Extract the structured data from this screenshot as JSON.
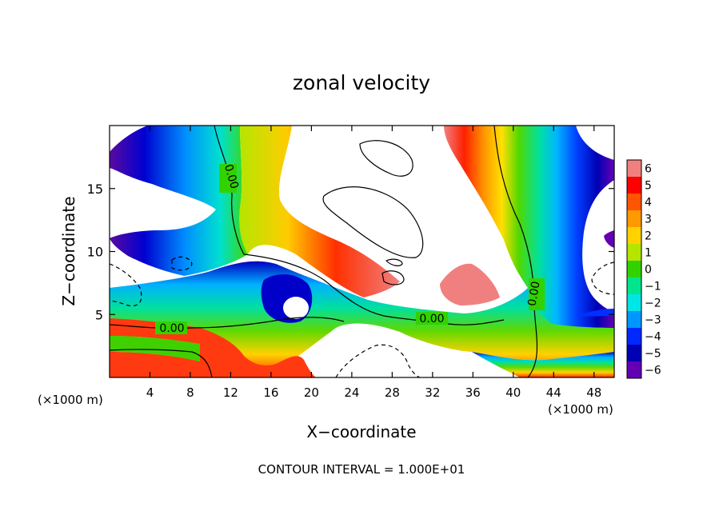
{
  "chart_data": {
    "type": "heatmap",
    "title": "zonal velocity",
    "xlabel": "X−coordinate",
    "ylabel": "Z−coordinate",
    "x_unit_left": "(×1000 m)",
    "x_unit_right": "(×1000 m)",
    "footer": "CONTOUR INTERVAL = 1.000E+01",
    "contour_label": "0.00",
    "xlim": [
      0,
      50
    ],
    "ylim": [
      0,
      20
    ],
    "x_ticks": [
      4,
      8,
      12,
      16,
      20,
      24,
      28,
      32,
      36,
      40,
      44,
      48
    ],
    "x_tick_labels": [
      "4",
      "8",
      "12",
      "16",
      "20",
      "24",
      "28",
      "32",
      "36",
      "40",
      "44",
      "48"
    ],
    "y_ticks": [
      5,
      10,
      15
    ],
    "y_tick_labels": [
      "5",
      "10",
      "15"
    ],
    "colorbar": {
      "levels": [
        "6",
        "5",
        "4",
        "3",
        "2",
        "1",
        "0",
        "−1",
        "−2",
        "−3",
        "−4",
        "−5",
        "−6"
      ],
      "colors": [
        "#f08080",
        "#ff0000",
        "#ff5500",
        "#ff9900",
        "#ffd200",
        "#b4e600",
        "#32d200",
        "#00e68c",
        "#00e6e6",
        "#0096ff",
        "#0028ff",
        "#0000b4",
        "#6400b4"
      ]
    }
  }
}
